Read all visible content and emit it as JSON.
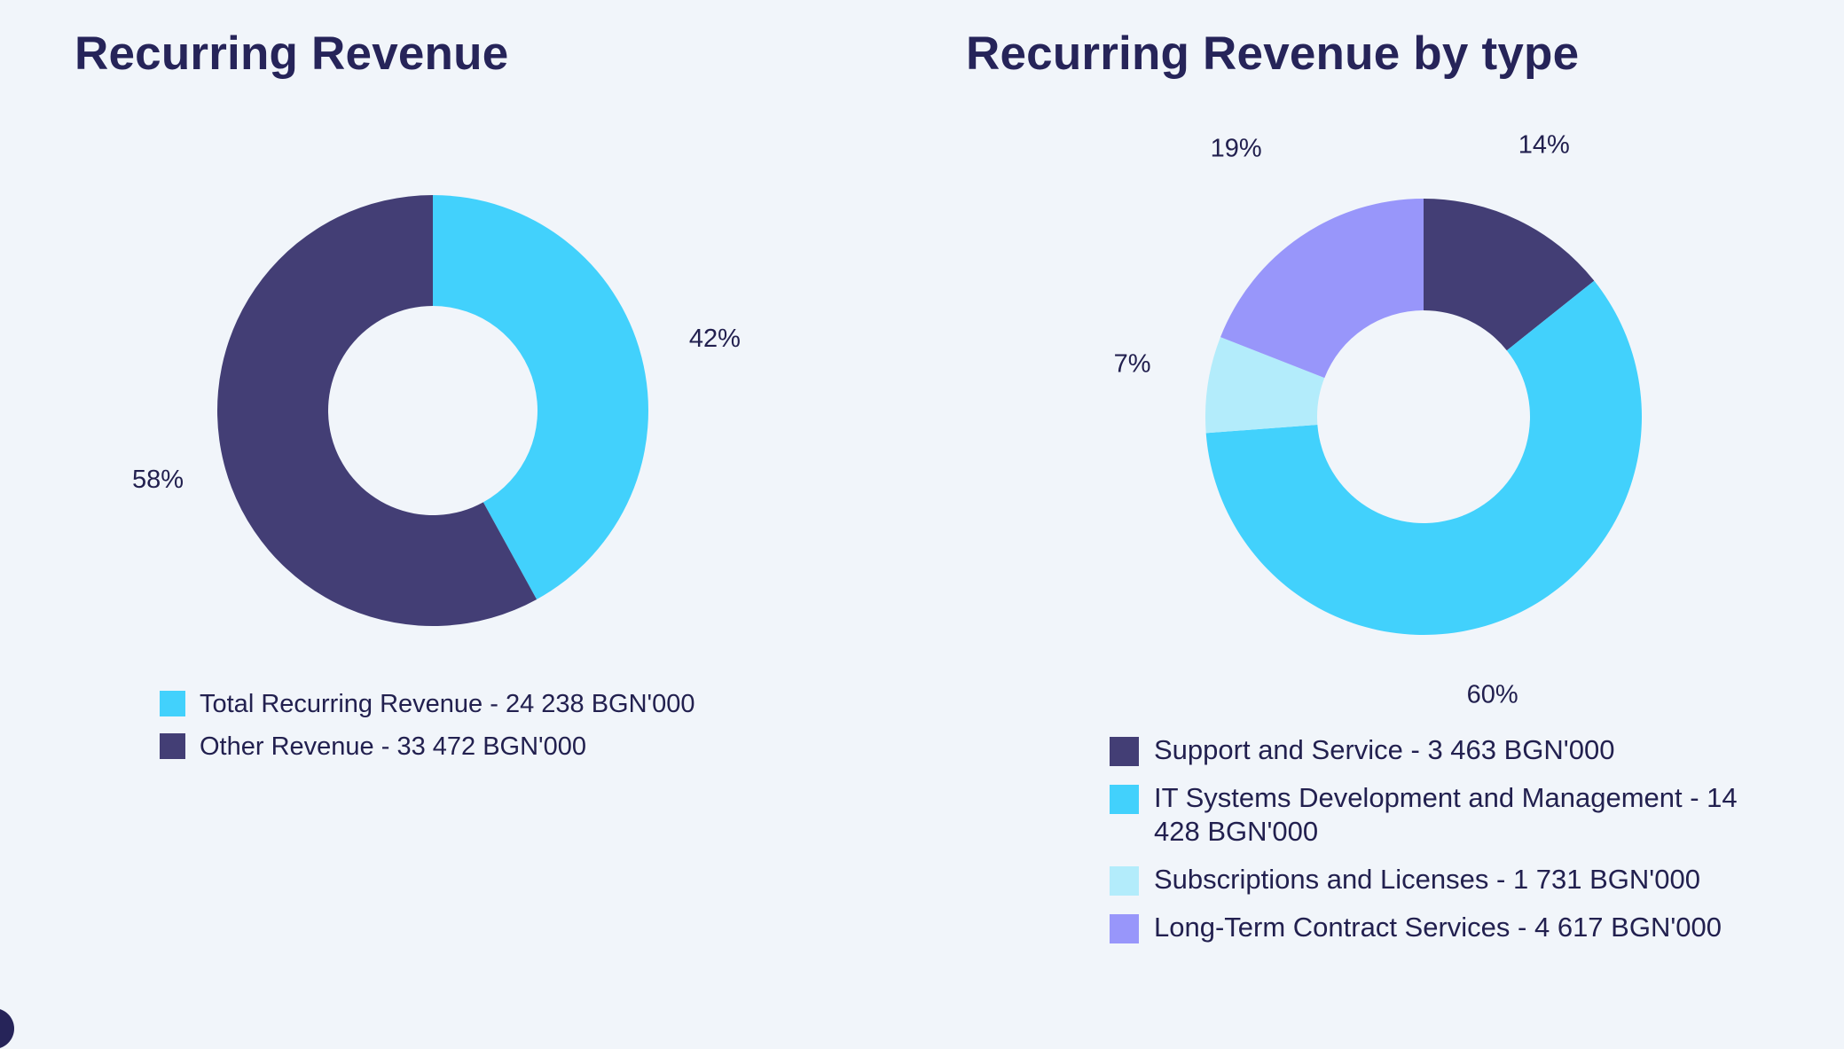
{
  "chart_data": [
    {
      "type": "pie",
      "variant": "donut",
      "title": "Recurring Revenue",
      "slices": [
        {
          "label": "Total Recurring Revenue - 24 238 BGN'000",
          "value": 24238,
          "percent_label": "42%",
          "color": "#42d1fc"
        },
        {
          "label": "Other Revenue - 33 472 BGN'000",
          "value": 33472,
          "percent_label": "58%",
          "color": "#433e75"
        }
      ],
      "legend_position": "bottom"
    },
    {
      "type": "pie",
      "variant": "donut",
      "title": "Recurring Revenue by type",
      "slices": [
        {
          "label": "Support and Service - 3 463 BGN'000",
          "value": 3463,
          "percent_label": "14%",
          "color": "#433e75"
        },
        {
          "label": "IT Systems Development and Management - 14 428 BGN'000",
          "value": 14428,
          "percent_label": "60%",
          "color": "#42d1fc"
        },
        {
          "label": "Subscriptions and Licenses - 1 731 BGN'000",
          "value": 1731,
          "percent_label": "7%",
          "color": "#b3ecfb"
        },
        {
          "label": "Long-Term Contract Services - 4 617 BGN'000",
          "value": 4617,
          "percent_label": "19%",
          "color": "#9896fa"
        }
      ],
      "legend_position": "bottom"
    }
  ]
}
